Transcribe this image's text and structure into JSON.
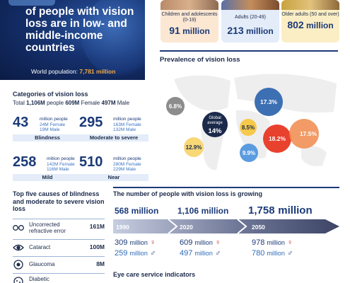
{
  "hero": {
    "headline": "of people with vision loss are in low- and middle-income countries",
    "world_label": "World population:",
    "world_value": "7,781 million"
  },
  "age_groups": [
    {
      "label": "Children and adolescents (0-19)",
      "value": "91",
      "unit": "million"
    },
    {
      "label": "Adults (20-49)",
      "value": "213",
      "unit": "million"
    },
    {
      "label": "Older adults (50 and over)",
      "value": "802",
      "unit": "million"
    }
  ],
  "prevalence": {
    "title": "Prevalence of vision loss",
    "global_label": "Global average",
    "global_value": "14%",
    "regions": [
      "6.8%",
      "17.3%",
      "8.5%",
      "12.9%",
      "18.2%",
      "17.5%",
      "9.9%"
    ],
    "colors": {
      "low": "#8cb8e6",
      "mid": "#f6c94a",
      "high": "#f08a4b",
      "top": "#e8412e",
      "grey": "#8c8c8c",
      "blue": "#3d6fb3",
      "navy": "#1b2a4a"
    }
  },
  "categories": {
    "title": "Categories of vision loss",
    "total_label": "Total",
    "total": "1,106M",
    "people": "people",
    "female": "609M",
    "female_label": "Female",
    "male": "497M",
    "male_label": "Male",
    "items": [
      {
        "value": "43",
        "unit": "million people",
        "female": "24M Female",
        "male": "19M Male",
        "label": "Blindness"
      },
      {
        "value": "295",
        "unit": "million people",
        "female": "163M Female",
        "male": "132M Male",
        "label": "Moderate to severe"
      },
      {
        "value": "258",
        "unit": "million people",
        "female": "142M Female",
        "male": "116M Male",
        "label": "Mild"
      },
      {
        "value": "510",
        "unit": "million people",
        "female": "280M Female",
        "male": "229M Male",
        "label": "Near"
      }
    ]
  },
  "causes": {
    "title": "Top five causes of blindness and moderate to severe vision loss",
    "items": [
      {
        "name": "Uncorrected refractive error",
        "value": "161M",
        "icon": "glasses-icon"
      },
      {
        "name": "Cataract",
        "value": "100M",
        "icon": "eye-icon"
      },
      {
        "name": "Glaucoma",
        "value": "8M",
        "icon": "glaucoma-icon"
      },
      {
        "name": "Diabetic",
        "value": "",
        "icon": "diabetic-icon"
      }
    ]
  },
  "growth": {
    "title": "The number of people with vision loss is growing",
    "points": [
      {
        "total": "568",
        "year": "1990",
        "female": "309",
        "male": "259"
      },
      {
        "total": "1,106",
        "year": "2020",
        "female": "609",
        "male": "497"
      },
      {
        "total": "1,758",
        "year": "2050",
        "female": "978",
        "male": "780"
      }
    ],
    "unit": "million"
  },
  "eye_care": {
    "title": "Eye care service indicators"
  }
}
